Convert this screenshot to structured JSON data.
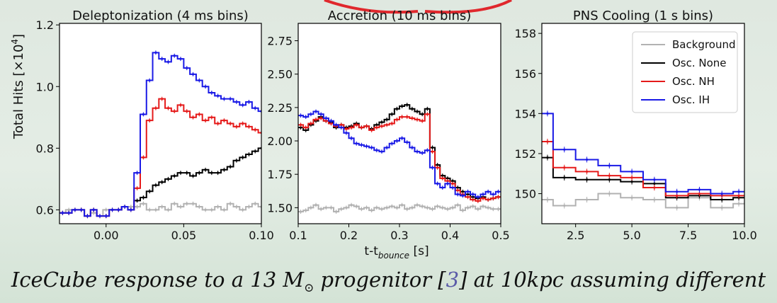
{
  "chart_data": [
    {
      "type": "line",
      "title": "Deleptonization (4 ms bins)",
      "ylabel_main": "Total Hits [×10",
      "ylabel_exp": "4",
      "ylabel_close": "]",
      "xlim": [
        -0.03,
        0.1
      ],
      "ylim": [
        0.555,
        1.205
      ],
      "xticks": [
        0.0,
        0.05,
        0.1
      ],
      "xtick_labels": [
        "0.00",
        "0.05",
        "0.10"
      ],
      "yticks": [
        0.6,
        0.8,
        1.0,
        1.2
      ],
      "ytick_labels": [
        "0.6",
        "0.8",
        "1.0",
        "1.2"
      ],
      "step": 0.004,
      "x0": -0.03,
      "series": [
        {
          "name": "Background",
          "color": "#b2b2b2",
          "values": [
            0.59,
            0.6,
            0.6,
            0.6,
            0.58,
            0.59,
            0.58,
            0.6,
            0.6,
            0.6,
            0.61,
            0.61,
            0.61,
            0.62,
            0.6,
            0.6,
            0.61,
            0.6,
            0.62,
            0.61,
            0.62,
            0.62,
            0.61,
            0.6,
            0.6,
            0.61,
            0.6,
            0.62,
            0.61,
            0.6,
            0.61,
            0.62,
            0.61,
            0.6,
            0.62
          ]
        },
        {
          "name": "Osc. None",
          "color": "#000000",
          "values": [
            0.59,
            0.59,
            0.6,
            0.6,
            0.58,
            0.6,
            0.58,
            0.58,
            0.6,
            0.6,
            0.61,
            0.6,
            0.63,
            0.64,
            0.66,
            0.68,
            0.69,
            0.7,
            0.71,
            0.72,
            0.72,
            0.71,
            0.72,
            0.73,
            0.72,
            0.72,
            0.73,
            0.74,
            0.76,
            0.77,
            0.78,
            0.79,
            0.8,
            0.82,
            0.84
          ]
        },
        {
          "name": "Osc. NH",
          "color": "#e51a1a",
          "values": [
            0.59,
            0.59,
            0.6,
            0.6,
            0.58,
            0.6,
            0.58,
            0.58,
            0.6,
            0.6,
            0.61,
            0.6,
            0.67,
            0.77,
            0.89,
            0.93,
            0.96,
            0.93,
            0.92,
            0.94,
            0.92,
            0.9,
            0.91,
            0.89,
            0.9,
            0.88,
            0.89,
            0.88,
            0.87,
            0.88,
            0.87,
            0.86,
            0.85,
            0.86,
            0.87
          ]
        },
        {
          "name": "Osc. IH",
          "color": "#1a1ae6",
          "values": [
            0.59,
            0.59,
            0.6,
            0.6,
            0.58,
            0.6,
            0.58,
            0.58,
            0.6,
            0.6,
            0.61,
            0.6,
            0.72,
            0.91,
            1.02,
            1.11,
            1.09,
            1.08,
            1.1,
            1.09,
            1.06,
            1.04,
            1.02,
            1.0,
            0.98,
            0.97,
            0.96,
            0.96,
            0.95,
            0.94,
            0.95,
            0.93,
            0.92,
            0.92,
            0.91
          ]
        }
      ]
    },
    {
      "type": "line",
      "title": "Accretion (10 ms bins)",
      "xlabel_main": "t-t",
      "xlabel_sub": "bounce",
      "xlabel_unit": " [s]",
      "xlim": [
        0.1,
        0.5
      ],
      "ylim": [
        1.38,
        2.88
      ],
      "xticks": [
        0.1,
        0.2,
        0.3,
        0.4,
        0.5
      ],
      "xtick_labels": [
        "0.1",
        "0.2",
        "0.3",
        "0.4",
        "0.5"
      ],
      "yticks": [
        1.5,
        1.75,
        2.0,
        2.25,
        2.5,
        2.75
      ],
      "ytick_labels": [
        "1.50",
        "1.75",
        "2.00",
        "2.25",
        "2.50",
        "2.75"
      ],
      "step": 0.01,
      "x0": 0.1,
      "series": [
        {
          "name": "Background",
          "color": "#b2b2b2",
          "values": [
            1.47,
            1.48,
            1.5,
            1.52,
            1.49,
            1.5,
            1.5,
            1.47,
            1.49,
            1.5,
            1.52,
            1.51,
            1.49,
            1.5,
            1.48,
            1.5,
            1.49,
            1.5,
            1.51,
            1.5,
            1.52,
            1.49,
            1.5,
            1.52,
            1.51,
            1.5,
            1.49,
            1.51,
            1.5,
            1.49,
            1.5,
            1.52,
            1.48,
            1.5,
            1.51,
            1.49,
            1.51,
            1.5,
            1.49,
            1.49
          ]
        },
        {
          "name": "Osc. None",
          "color": "#000000",
          "values": [
            2.1,
            2.08,
            2.12,
            2.15,
            2.18,
            2.15,
            2.14,
            2.1,
            2.12,
            2.1,
            2.11,
            2.13,
            2.1,
            2.11,
            2.09,
            2.12,
            2.14,
            2.16,
            2.2,
            2.24,
            2.26,
            2.27,
            2.24,
            2.22,
            2.2,
            2.24,
            1.95,
            1.82,
            1.74,
            1.72,
            1.7,
            1.65,
            1.62,
            1.6,
            1.58,
            1.57,
            1.58,
            1.56,
            1.57,
            1.58
          ]
        },
        {
          "name": "Osc. NH",
          "color": "#e51a1a",
          "values": [
            2.12,
            2.1,
            2.13,
            2.16,
            2.17,
            2.15,
            2.13,
            2.11,
            2.12,
            2.09,
            2.1,
            2.12,
            2.1,
            2.11,
            2.08,
            2.1,
            2.11,
            2.12,
            2.13,
            2.16,
            2.18,
            2.18,
            2.17,
            2.16,
            2.15,
            2.2,
            1.92,
            1.8,
            1.72,
            1.7,
            1.68,
            1.63,
            1.6,
            1.58,
            1.56,
            1.55,
            1.57,
            1.56,
            1.57,
            1.58
          ]
        },
        {
          "name": "Osc. IH",
          "color": "#1a1ae6",
          "values": [
            2.19,
            2.18,
            2.2,
            2.22,
            2.2,
            2.17,
            2.15,
            2.12,
            2.1,
            2.06,
            2.02,
            1.98,
            1.97,
            1.96,
            1.95,
            1.93,
            1.92,
            1.95,
            1.98,
            2.0,
            2.02,
            1.99,
            1.95,
            1.92,
            1.91,
            1.93,
            1.8,
            1.68,
            1.65,
            1.68,
            1.65,
            1.6,
            1.59,
            1.62,
            1.6,
            1.58,
            1.6,
            1.62,
            1.6,
            1.62
          ]
        }
      ]
    },
    {
      "type": "line",
      "title": "PNS Cooling (1 s bins)",
      "xlim": [
        1.0,
        10.0
      ],
      "ylim": [
        148.5,
        158.5
      ],
      "xticks": [
        2.5,
        5.0,
        7.5,
        10.0
      ],
      "xtick_labels": [
        "2.5",
        "5.0",
        "7.5",
        "10.0"
      ],
      "yticks": [
        150,
        152,
        154,
        156,
        158
      ],
      "ytick_labels": [
        "150",
        "152",
        "154",
        "156",
        "158"
      ],
      "edges": [
        1.0,
        1.5,
        2.5,
        3.5,
        4.5,
        5.5,
        6.5,
        7.5,
        8.5,
        9.5,
        10.0
      ],
      "legend_position": "top-right",
      "series": [
        {
          "name": "Background",
          "color": "#b2b2b2",
          "values": [
            149.7,
            149.4,
            149.7,
            150.0,
            149.8,
            149.7,
            149.3,
            149.8,
            149.3,
            149.5
          ]
        },
        {
          "name": "Osc. None",
          "color": "#000000",
          "values": [
            151.8,
            150.8,
            150.7,
            150.7,
            150.6,
            150.5,
            149.8,
            149.9,
            149.7,
            149.8
          ]
        },
        {
          "name": "Osc. NH",
          "color": "#e51a1a",
          "values": [
            152.6,
            151.3,
            151.1,
            150.9,
            150.8,
            150.3,
            149.9,
            150.0,
            149.9,
            149.9
          ]
        },
        {
          "name": "Osc. IH",
          "color": "#1a1ae6",
          "values": [
            154.0,
            152.2,
            151.7,
            151.4,
            151.1,
            150.7,
            150.1,
            150.2,
            150.0,
            150.1
          ]
        }
      ]
    }
  ],
  "legend": [
    "Background",
    "Osc. None",
    "Osc. NH",
    "Osc. IH"
  ],
  "caption": {
    "part1": "IceCube response to a 13 M",
    "sun_symbol": "⊙",
    "part2": " progenitor [",
    "ref": "3",
    "part3": "] at 10kpc assuming different"
  },
  "colors": {
    "accent_swoosh": "#e0282d"
  }
}
